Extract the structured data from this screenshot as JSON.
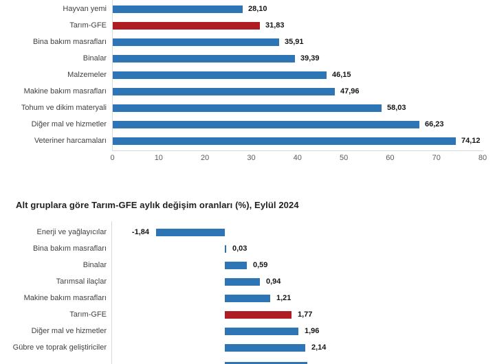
{
  "colors": {
    "background": "#ffffff",
    "bar_blue": "#2e75b6",
    "bar_red": "#b01c24",
    "axis_gray": "#d9d9d9",
    "category_text": "#404040",
    "value_text": "#141414",
    "tick_text": "#5a5a5a",
    "title_text": "#1f1f1f"
  },
  "chart_data": [
    {
      "type": "bar",
      "orientation": "horizontal",
      "categories": [
        "Hayvan yemi",
        "Tarım-GFE",
        "Bina bakım masrafları",
        "Binalar",
        "Malzemeler",
        "Makine bakım masrafları",
        "Tohum ve dikim materyali",
        "Diğer mal ve hizmetler",
        "Veteriner harcamaları"
      ],
      "values": [
        28.1,
        31.83,
        35.91,
        39.39,
        46.15,
        47.96,
        58.03,
        66.23,
        74.12
      ],
      "value_labels": [
        "28,10",
        "31,83",
        "35,91",
        "39,39",
        "46,15",
        "47,96",
        "58,03",
        "66,23",
        "74,12"
      ],
      "highlight_index": 1,
      "highlight_category": "Tarım-GFE",
      "xlim": [
        0,
        80
      ],
      "xticks": [
        "0",
        "10",
        "20",
        "30",
        "40",
        "50",
        "60",
        "70",
        "80"
      ],
      "grid": false,
      "legend": false,
      "bar_color": "#2e75b6",
      "highlight_color": "#b01c24"
    },
    {
      "type": "bar",
      "orientation": "horizontal",
      "title": "Alt gruplara göre Tarım-GFE aylık değişim oranları (%), Eylül 2024",
      "categories": [
        "Enerji  ve yağlayıcılar",
        "Bina bakım masrafları",
        "Binalar",
        "Tarımsal ilaçlar",
        "Makine bakım masrafları",
        "Tarım-GFE",
        "Diğer mal ve hizmetler",
        "Gübre ve toprak geliştiriciler"
      ],
      "values": [
        -1.84,
        0.03,
        0.59,
        0.94,
        1.21,
        1.77,
        1.96,
        2.14
      ],
      "value_labels": [
        "-1,84",
        "0,03",
        "0,59",
        "0,94",
        "1,21",
        "1,77",
        "1,96",
        "2,14"
      ],
      "highlight_index": 5,
      "highlight_category": "Tarım-GFE",
      "grid": false,
      "legend": false,
      "bar_color": "#2e75b6",
      "highlight_color": "#b01c24",
      "cropped_last_row": {
        "bar_value_estimate": 2.2,
        "text_visible": false
      }
    }
  ]
}
